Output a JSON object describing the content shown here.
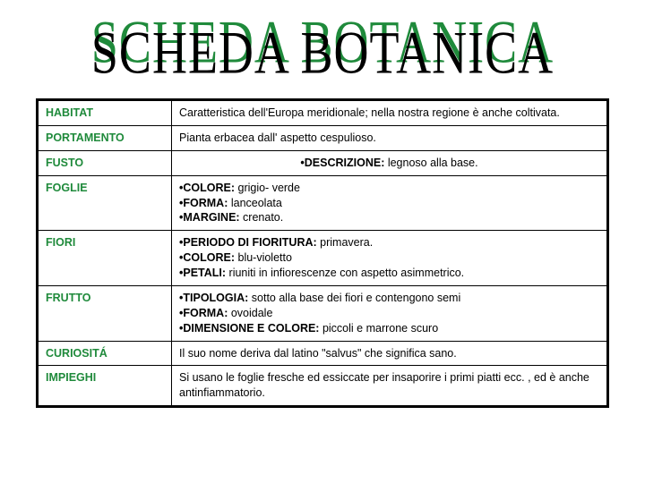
{
  "title": "SCHEDA BOTANICA",
  "colors": {
    "title_shadow": "#1f8a3b",
    "title_main": "#000000",
    "label_color": "#1f8a3b",
    "border_color": "#000000",
    "background": "#ffffff"
  },
  "typography": {
    "title_font": "Times New Roman",
    "title_fontsize_pt": 40,
    "body_font": "Arial",
    "body_fontsize_pt": 9
  },
  "rows": {
    "habitat": {
      "label": "HABITAT",
      "text": "Caratteristica dell'Europa meridionale; nella nostra regione è anche coltivata."
    },
    "portamento": {
      "label": "PORTAMENTO",
      "text": "Pianta erbacea  dall' aspetto  cespulioso."
    },
    "fusto": {
      "label": "FUSTO",
      "b1_key": "•DESCRIZIONE:",
      "b1_val": " legnoso alla base."
    },
    "foglie": {
      "label": "FOGLIE",
      "b1_key": "•COLORE:",
      "b1_val": " grigio- verde",
      "b2_key": "•FORMA:",
      "b2_val": " lanceolata",
      "b3_key": "•MARGINE:",
      "b3_val": " crenato."
    },
    "fiori": {
      "label": "FIORI",
      "b1_key": "•PERIODO DI FIORITURA:",
      "b1_val": " primavera.",
      "b2_key": "•COLORE:",
      "b2_val": " blu-violetto",
      "b3_key": "•PETALI:",
      "b3_val": " riuniti in infiorescenze con aspetto asimmetrico."
    },
    "frutto": {
      "label": "FRUTTO",
      "b1_key": "•TIPOLOGIA:",
      "b1_val": " sotto alla base dei fiori e contengono semi",
      "b2_key": "•FORMA:",
      "b2_val": " ovoidale",
      "b3_key": "•DIMENSIONE  E  COLORE:",
      "b3_val": " piccoli e marrone scuro"
    },
    "curiosita": {
      "label": "CURIOSITÁ",
      "text": "Il  suo  nome  deriva dal  latino  \"salvus\" che  significa  sano."
    },
    "impieghi": {
      "label": "IMPIEGHI",
      "text": "Si  usano  le foglie fresche ed essiccate per  insaporire i primi piatti ecc. , ed è anche  antinfiammatorio."
    }
  }
}
